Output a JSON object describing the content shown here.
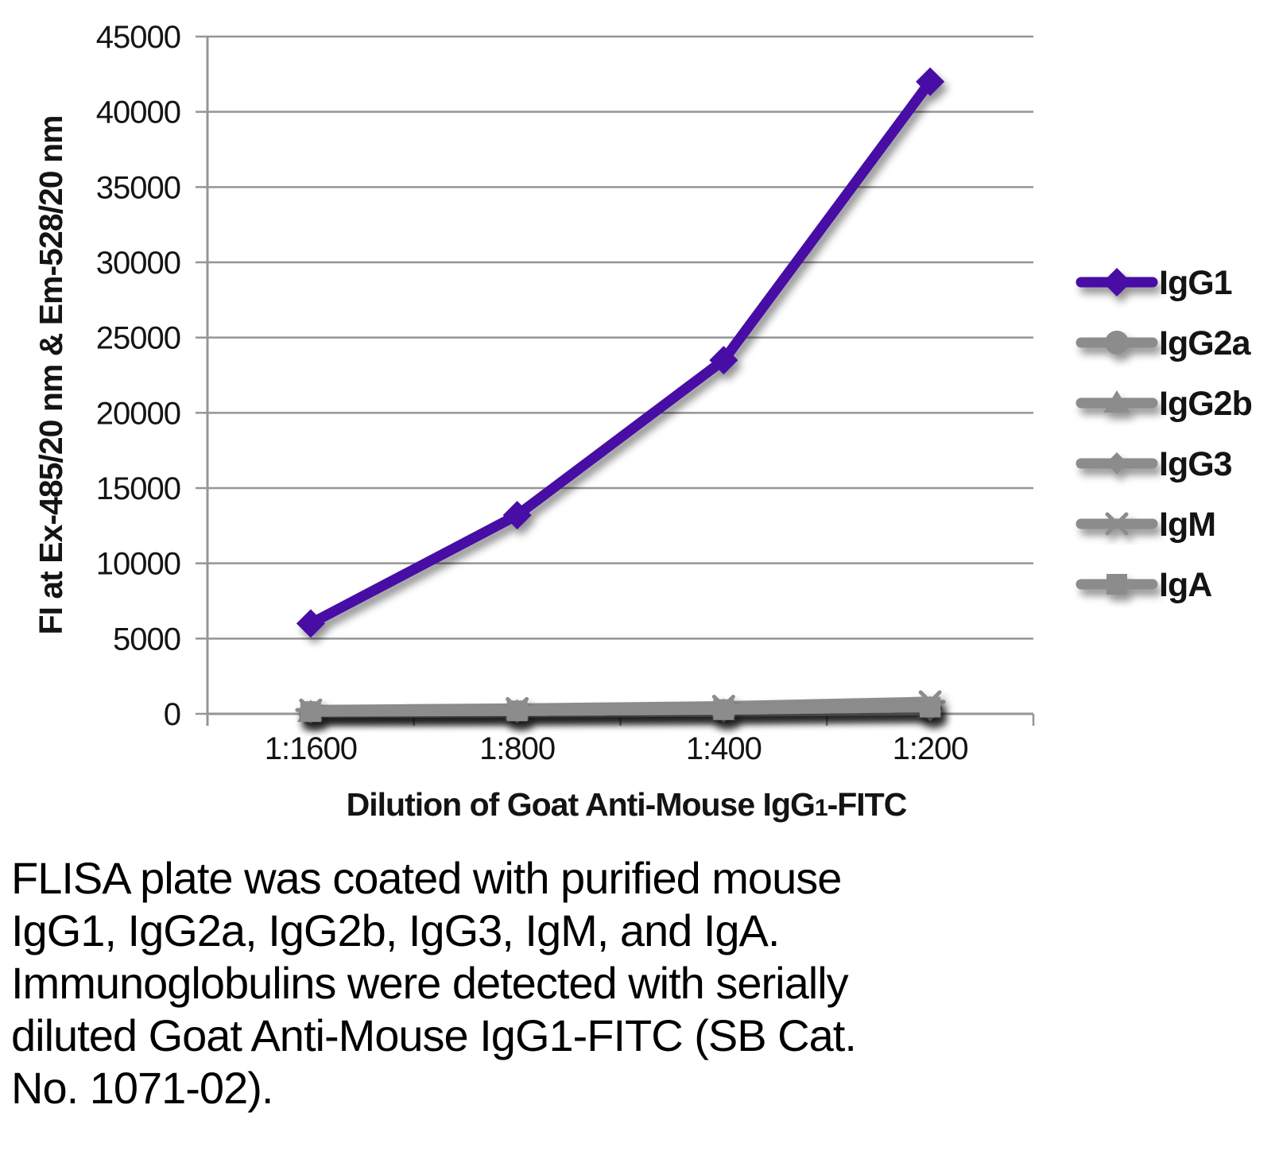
{
  "palette": {
    "accent_purple": "#4611a5",
    "series_gray": "#8c8c8c",
    "grid_gray": "#959595",
    "text_black": "#141414"
  },
  "chart_data": {
    "type": "line",
    "title": "",
    "categories": [
      "1:1600",
      "1:800",
      "1:400",
      "1:200"
    ],
    "series": [
      {
        "name": "IgG1",
        "color": "#4611a5",
        "marker": "diamond",
        "values": [
          6000,
          13200,
          23500,
          42000
        ]
      },
      {
        "name": "IgG2a",
        "color": "#8c8c8c",
        "marker": "circle",
        "values": [
          50,
          80,
          120,
          200
        ]
      },
      {
        "name": "IgG2b",
        "color": "#8c8c8c",
        "marker": "triangle",
        "values": [
          100,
          140,
          200,
          350
        ]
      },
      {
        "name": "IgG3",
        "color": "#8c8c8c",
        "marker": "diamond-small",
        "values": [
          70,
          100,
          150,
          250
        ]
      },
      {
        "name": "IgM",
        "color": "#8c8c8c",
        "marker": "asterisk",
        "values": [
          250,
          350,
          500,
          800
        ]
      },
      {
        "name": "IgA",
        "color": "#8c8c8c",
        "marker": "square",
        "values": [
          150,
          200,
          280,
          450
        ]
      }
    ],
    "xlabel_parts": [
      "Dilution of Goat Anti-Mouse IgG",
      "1",
      "-FITC"
    ],
    "ylabel": "FI at Ex-485/20 nm & Em-528/20 nm",
    "ylim": [
      0,
      45000
    ],
    "ytick_step": 5000,
    "y_tick_labels": [
      "0",
      "5000",
      "10000",
      "15000",
      "20000",
      "25000",
      "30000",
      "35000",
      "40000",
      "45000"
    ],
    "grid": "horizontal",
    "legend_position": "right"
  },
  "caption": {
    "lines": [
      "FLISA plate was coated with purified mouse",
      "IgG1, IgG2a, IgG2b, IgG3, IgM, and IgA.",
      "Immunoglobulins were detected with serially",
      "diluted Goat Anti-Mouse IgG1-FITC (SB Cat.",
      "No. 1071-02)."
    ]
  }
}
